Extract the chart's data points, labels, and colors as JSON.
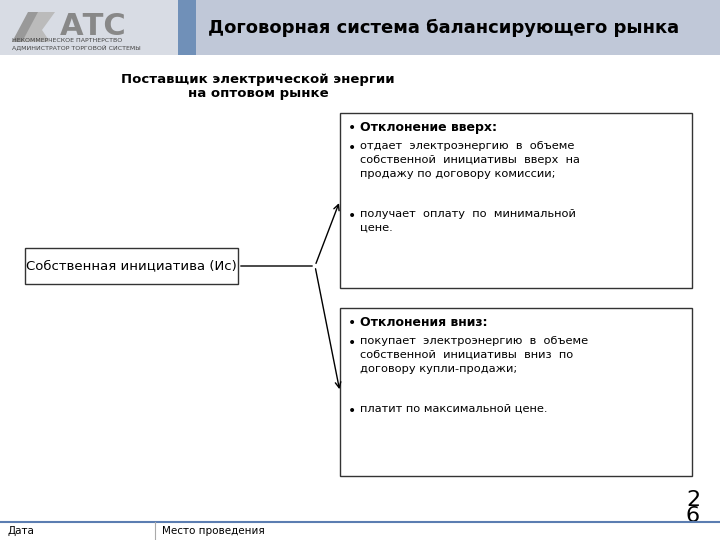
{
  "title": "Договорная система балансирующего рынка",
  "header_bg": "#c0c8d8",
  "header_logo_bg": "#d8dce4",
  "header_blue_strip": "#7090b8",
  "header_text_color": "#000000",
  "background_color": "#ffffff",
  "supplier_label_line1": "Поставщик электрической энергии",
  "supplier_label_line2": "на оптовом рынке",
  "left_box_text": "Собственная инициатива (Ис)",
  "top_box_title": "Отклонение вверх:",
  "top_box_bullet1": "отдает  электроэнергию  в  объеме\nсобственной  инициативы  вверх  на\nпродажу по договору комиссии;",
  "top_box_bullet2": "получает  оплату  по  минимальной\nцене.",
  "bottom_box_title": "Отклонения вниз:",
  "bottom_box_bullet1": "покупает  электроэнергию  в  объеме\nсобственной  инициативы  вниз  по\nдоговору купли-продажи;",
  "bottom_box_bullet2": "платит по максимальной цене.",
  "footer_left": "Дата",
  "footer_right": "Место проведения",
  "page_num1": "2",
  "page_num2": "6",
  "footer_line_color": "#5b7db1",
  "box_border_color": "#555555",
  "atc_text": "АТС",
  "atc_sub1": "НЕКОММЕРЧЕСКОЕ ПАРТНЕРСТВО",
  "atc_sub2": "АДМИНИСТРАТОР ТОРГОВОЙ СИСТЕМЫ"
}
